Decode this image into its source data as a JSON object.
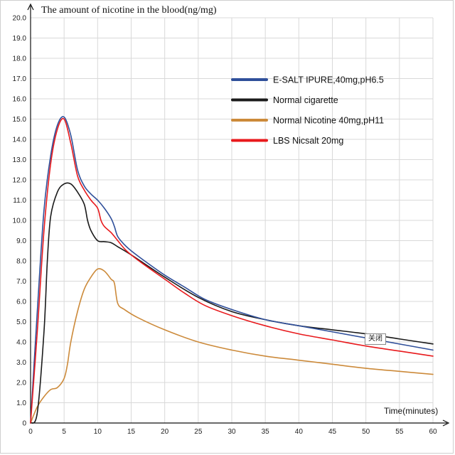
{
  "chart_data": {
    "type": "line",
    "ylabel": "The amount of nicotine in the blood(ng/mg)",
    "xlabel": "Time(minutes)",
    "xlim": [
      0,
      60
    ],
    "ylim": [
      0,
      20
    ],
    "x_ticks": [
      "0",
      "5",
      "10",
      "15",
      "20",
      "25",
      "30",
      "35",
      "40",
      "45",
      "50",
      "55",
      "60"
    ],
    "y_ticks": [
      "0",
      "1.0",
      "2.0",
      "3.0",
      "4.0",
      "5.0",
      "6.0",
      "7.0",
      "8.0",
      "9.0",
      "10.0",
      "11.0",
      "12.0",
      "13.0",
      "14.0",
      "15.0",
      "16.0",
      "17.0",
      "18.0",
      "19.0",
      "20.0"
    ],
    "grid": true,
    "legend_position": "top-right",
    "series": [
      {
        "name": "E-SALT IPURE,40mg,pH6.5",
        "color": "#2f4f9a",
        "x": [
          0,
          1,
          2,
          3,
          4,
          5,
          6,
          7,
          8,
          9,
          10,
          11,
          12,
          12.5,
          13,
          14,
          15,
          17,
          20,
          23,
          26,
          30,
          35,
          40,
          45,
          50,
          55,
          60
        ],
        "y": [
          0,
          5.5,
          10.5,
          13.2,
          14.7,
          15.1,
          14.2,
          12.5,
          11.7,
          11.3,
          11.0,
          10.6,
          10.1,
          9.7,
          9.2,
          8.8,
          8.5,
          8.0,
          7.3,
          6.7,
          6.1,
          5.6,
          5.1,
          4.8,
          4.5,
          4.2,
          3.9,
          3.6
        ]
      },
      {
        "name": "Normal cigarette",
        "color": "#1a1a1a",
        "x": [
          0,
          1,
          2,
          2.5,
          3,
          4,
          5,
          6,
          7,
          8,
          8.5,
          9,
          10,
          11,
          12,
          13,
          15,
          20,
          25,
          30,
          35,
          40,
          45,
          50,
          55,
          60
        ],
        "y": [
          0,
          0.5,
          4.5,
          8.0,
          10.2,
          11.4,
          11.8,
          11.8,
          11.4,
          10.8,
          10.0,
          9.5,
          9.0,
          8.95,
          8.9,
          8.7,
          8.3,
          7.2,
          6.2,
          5.5,
          5.1,
          4.8,
          4.6,
          4.4,
          4.15,
          3.9
        ]
      },
      {
        "name": "Normal Nicotine 40mg,pH11",
        "color": "#cc8a3a",
        "x": [
          0,
          1,
          2,
          3,
          4,
          5,
          5.5,
          6,
          7,
          8,
          9,
          10,
          11,
          12,
          12.5,
          13,
          14,
          16,
          20,
          25,
          30,
          35,
          40,
          45,
          50,
          55,
          60
        ],
        "y": [
          0,
          0.8,
          1.3,
          1.65,
          1.75,
          2.2,
          2.9,
          4.0,
          5.5,
          6.6,
          7.2,
          7.6,
          7.5,
          7.1,
          6.9,
          5.9,
          5.6,
          5.2,
          4.6,
          4.0,
          3.6,
          3.3,
          3.1,
          2.9,
          2.7,
          2.55,
          2.4
        ]
      },
      {
        "name": "LBS Nicsalt 20mg",
        "color": "#e8191c",
        "x": [
          0,
          1,
          2,
          3,
          4,
          5,
          6,
          7,
          8,
          9,
          10,
          10.5,
          11,
          12,
          13,
          14,
          15,
          17,
          20,
          23,
          26,
          30,
          35,
          40,
          45,
          50,
          55,
          60
        ],
        "y": [
          0,
          4.5,
          9.5,
          12.8,
          14.5,
          15.0,
          13.8,
          12.2,
          11.5,
          11.0,
          10.6,
          10.0,
          9.7,
          9.4,
          9.0,
          8.6,
          8.3,
          7.8,
          7.1,
          6.4,
          5.8,
          5.3,
          4.8,
          4.4,
          4.1,
          3.8,
          3.55,
          3.3
        ]
      }
    ]
  },
  "popup": {
    "close_label": "关闭"
  }
}
